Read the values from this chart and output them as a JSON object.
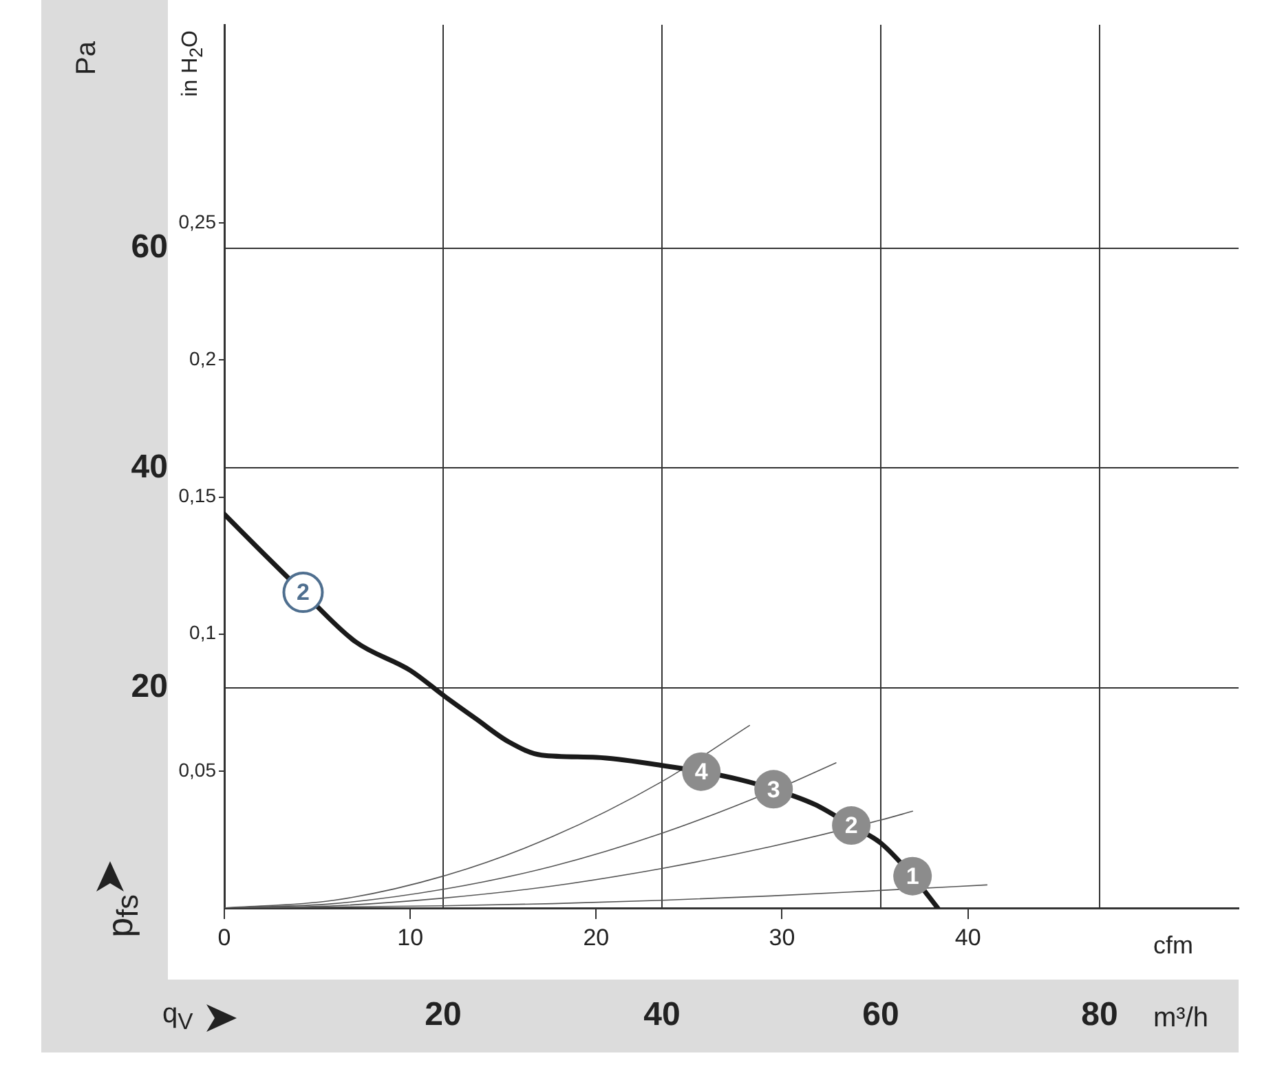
{
  "chart_data": {
    "type": "line",
    "xlabel": "q$_{V}$",
    "ylabel": "p$_{fs}$",
    "x2label": "cfm",
    "y2label": "in H$_{2}$O",
    "xlim": [
      0,
      92.7
    ],
    "xticks": [
      20,
      40,
      60,
      80
    ],
    "x2lim": [
      0,
      54.56
    ],
    "x2ticks": [
      0,
      10,
      20,
      30,
      40
    ],
    "ylim": [
      0,
      80.3
    ],
    "yticks": [
      20,
      40,
      60
    ],
    "y2lim": [
      0,
      0.3224
    ],
    "y2ticks": [
      {
        "value": 0.05,
        "label": "0,05"
      },
      {
        "value": 0.1,
        "label": "0,1"
      },
      {
        "value": 0.15,
        "label": "0,15"
      },
      {
        "value": 0.2,
        "label": "0,2"
      },
      {
        "value": 0.25,
        "label": "0,25"
      }
    ],
    "grid": true,
    "legend": false,
    "series": [
      {
        "color": "#1a1a1a",
        "x": [
          0,
          3,
          7.2,
          12,
          17,
          20.2,
          23,
          26,
          29,
          34,
          40.4,
          43.6,
          47,
          50.2,
          54,
          57.3,
          60,
          62.9,
          65.2
        ],
        "values": [
          35.8,
          32.8,
          28.7,
          24.2,
          21.6,
          19.2,
          17.2,
          15.1,
          13.9,
          13.7,
          12.9,
          12.4,
          11.7,
          10.8,
          9.4,
          7.5,
          5.9,
          2.9,
          0
        ]
      },
      {
        "color": "#555555",
        "x": [
          0,
          10,
          20,
          30,
          40,
          48
        ],
        "values": [
          0,
          0.7,
          2.9,
          6.5,
          11.5,
          16.6
        ]
      },
      {
        "color": "#555555",
        "x": [
          0,
          10,
          20,
          30,
          40,
          50,
          55.9
        ],
        "values": [
          0,
          0.4,
          1.7,
          3.8,
          6.8,
          10.6,
          13.2
        ]
      },
      {
        "color": "#555555",
        "x": [
          0,
          10,
          20,
          30,
          40,
          50,
          60,
          62.9
        ],
        "values": [
          0,
          0.2,
          0.9,
          2,
          3.6,
          5.6,
          8,
          8.8
        ]
      },
      {
        "color": "#555555",
        "x": [
          0,
          20,
          30,
          40,
          50,
          60,
          69.7
        ],
        "values": [
          0,
          0.2,
          0.4,
          0.7,
          1.1,
          1.6,
          2.1
        ]
      }
    ],
    "annotations": [
      "Pa",
      "m³/h",
      {
        "text": "2",
        "x": 7.2,
        "y": 28.7
      },
      {
        "text": "4",
        "x": 43.6,
        "y": 12.4
      },
      {
        "text": "3",
        "x": 50.2,
        "y": 10.8
      },
      {
        "text": "2",
        "x": 57.3,
        "y": 7.5
      },
      {
        "text": "1",
        "x": 62.9,
        "y": 2.9
      }
    ]
  }
}
